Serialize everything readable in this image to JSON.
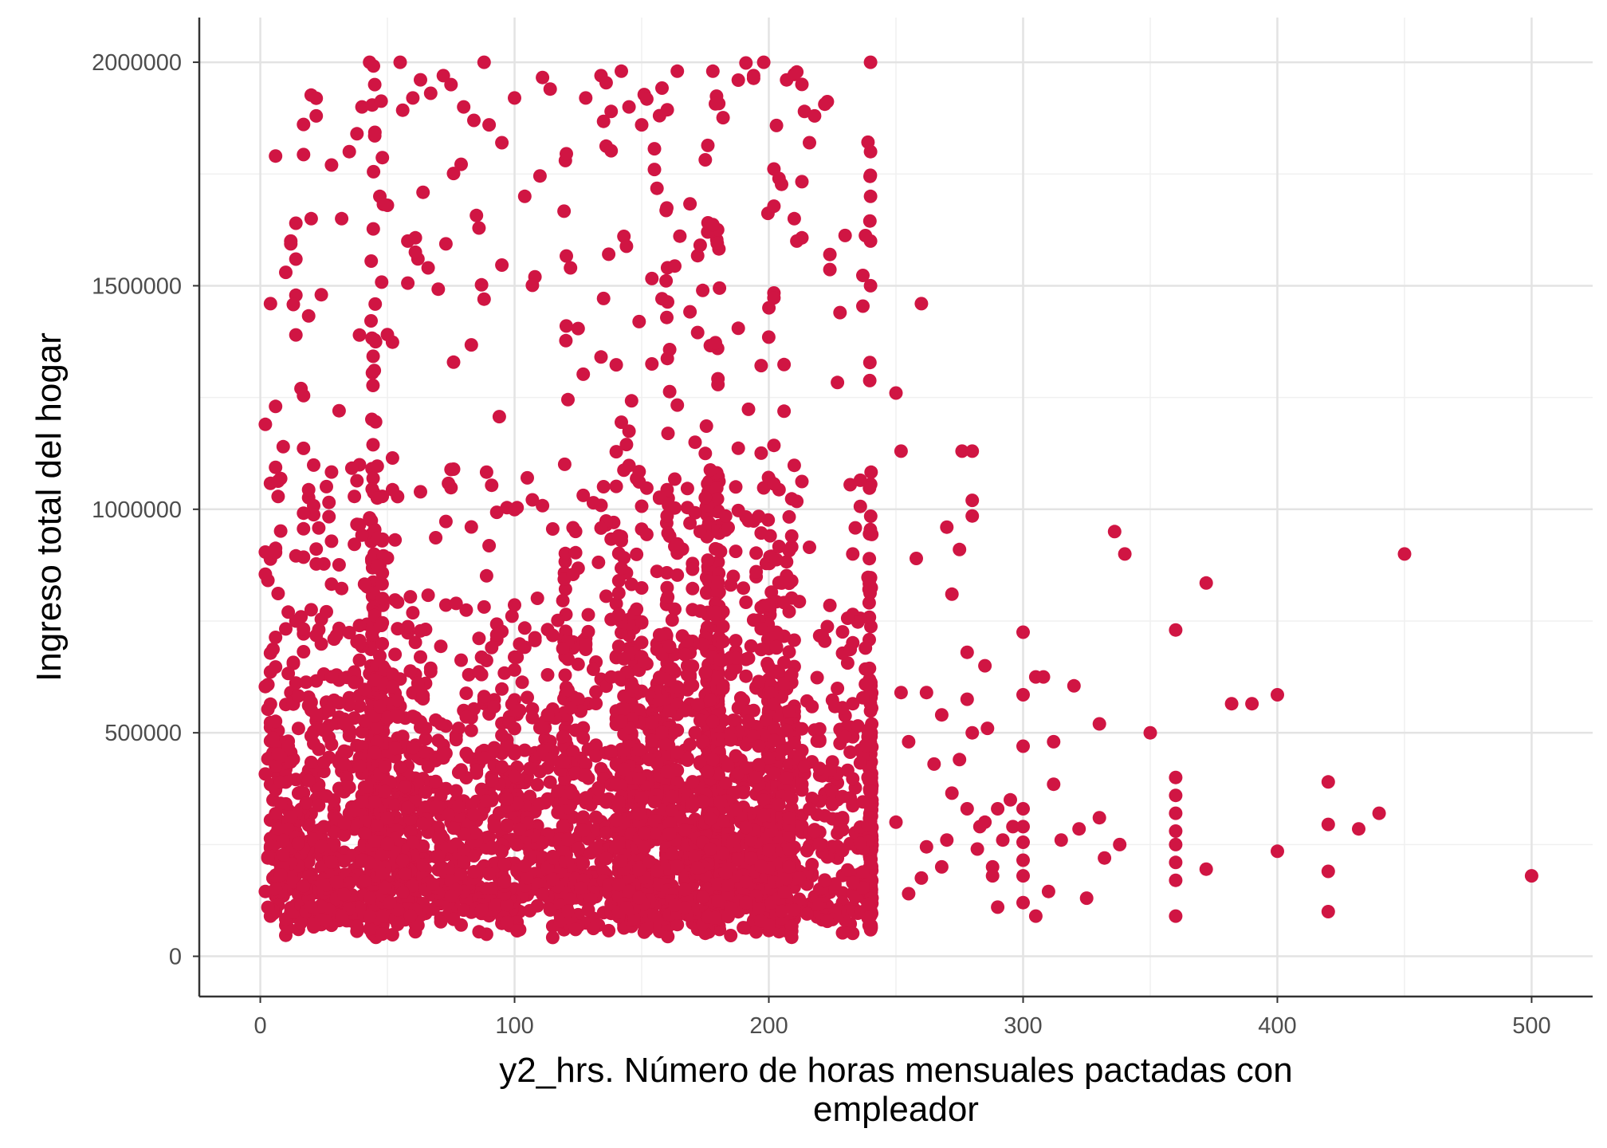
{
  "chart_data": {
    "type": "scatter",
    "title": "",
    "xlabel_lines": [
      "y2_hrs. Número de horas mensuales pactadas con",
      "empleador"
    ],
    "ylabel": "Ingreso total del hogar",
    "xlim": [
      -24,
      524
    ],
    "ylim": [
      -90000,
      2100000
    ],
    "x_ticks": [
      0,
      100,
      200,
      300,
      400,
      500
    ],
    "x_tick_labels": [
      "0",
      "100",
      "200",
      "300",
      "400",
      "500"
    ],
    "y_ticks": [
      0,
      500000,
      1000000,
      1500000,
      2000000
    ],
    "y_tick_labels": [
      "0",
      "500000",
      "1000000",
      "1500000",
      "2000000"
    ],
    "grid": true,
    "point_color": "#d01543",
    "points_summary": "Dense cloud of several thousand points for x between 0 and 240 hours (strong vertical bands at 44, 160, 176, 180 and 240 hours), concentrated below 500000 but reaching 2000000; sparse points beyond 250 hours.",
    "series": [
      {
        "name": "",
        "points": [
          [
            2,
            1190000
          ],
          [
            4,
            1460000
          ],
          [
            6,
            1230000
          ],
          [
            9,
            1140000
          ],
          [
            10,
            1530000
          ],
          [
            12,
            1600000
          ],
          [
            14,
            1390000
          ],
          [
            16,
            1270000
          ],
          [
            20,
            1650000
          ],
          [
            22,
            1880000
          ],
          [
            24,
            1480000
          ],
          [
            28,
            1770000
          ],
          [
            32,
            1650000
          ],
          [
            35,
            1800000
          ],
          [
            38,
            1840000
          ],
          [
            40,
            1900000
          ],
          [
            43,
            2000000
          ],
          [
            45,
            1950000
          ],
          [
            47,
            1700000
          ],
          [
            50,
            1680000
          ],
          [
            55,
            2000000
          ],
          [
            58,
            1600000
          ],
          [
            60,
            1920000
          ],
          [
            62,
            1560000
          ],
          [
            66,
            1540000
          ],
          [
            72,
            1970000
          ],
          [
            75,
            1950000
          ],
          [
            80,
            1900000
          ],
          [
            84,
            1870000
          ],
          [
            88,
            2000000
          ],
          [
            90,
            1860000
          ],
          [
            95,
            1820000
          ],
          [
            100,
            1920000
          ],
          [
            104,
            1700000
          ],
          [
            108,
            1520000
          ],
          [
            114,
            1940000
          ],
          [
            120,
            1780000
          ],
          [
            122,
            1540000
          ],
          [
            128,
            1920000
          ],
          [
            134,
            1970000
          ],
          [
            138,
            1890000
          ],
          [
            142,
            1980000
          ],
          [
            145,
            1900000
          ],
          [
            150,
            1860000
          ],
          [
            155,
            1760000
          ],
          [
            164,
            1980000
          ],
          [
            178,
            1980000
          ],
          [
            188,
            1960000
          ],
          [
            194,
            1970000
          ],
          [
            198,
            2000000
          ],
          [
            204,
            1740000
          ],
          [
            210,
            1650000
          ],
          [
            214,
            1890000
          ],
          [
            216,
            1820000
          ],
          [
            218,
            1880000
          ],
          [
            224,
            1570000
          ],
          [
            228,
            1440000
          ],
          [
            240,
            2000000
          ],
          [
            240,
            1800000
          ],
          [
            240,
            1700000
          ],
          [
            240,
            1600000
          ],
          [
            240,
            1500000
          ],
          [
            250,
            1260000
          ],
          [
            252,
            1130000
          ],
          [
            258,
            890000
          ],
          [
            260,
            1460000
          ],
          [
            270,
            960000
          ],
          [
            272,
            810000
          ],
          [
            275,
            910000
          ],
          [
            276,
            1130000
          ],
          [
            280,
            1130000
          ],
          [
            280,
            1020000
          ],
          [
            280,
            985000
          ],
          [
            278,
            680000
          ],
          [
            278,
            575000
          ],
          [
            280,
            500000
          ],
          [
            285,
            650000
          ],
          [
            286,
            510000
          ],
          [
            290,
            330000
          ],
          [
            300,
            725000
          ],
          [
            300,
            585000
          ],
          [
            300,
            470000
          ],
          [
            305,
            625000
          ],
          [
            308,
            625000
          ],
          [
            312,
            480000
          ],
          [
            312,
            385000
          ],
          [
            320,
            605000
          ],
          [
            330,
            520000
          ],
          [
            330,
            310000
          ],
          [
            336,
            950000
          ],
          [
            340,
            900000
          ],
          [
            350,
            500000
          ],
          [
            360,
            730000
          ],
          [
            360,
            400000
          ],
          [
            360,
            360000
          ],
          [
            360,
            320000
          ],
          [
            360,
            280000
          ],
          [
            360,
            250000
          ],
          [
            360,
            210000
          ],
          [
            360,
            170000
          ],
          [
            360,
            90000
          ],
          [
            372,
            835000
          ],
          [
            372,
            195000
          ],
          [
            382,
            565000
          ],
          [
            390,
            565000
          ],
          [
            400,
            585000
          ],
          [
            400,
            235000
          ],
          [
            420,
            390000
          ],
          [
            420,
            295000
          ],
          [
            420,
            190000
          ],
          [
            420,
            100000
          ],
          [
            432,
            285000
          ],
          [
            440,
            320000
          ],
          [
            450,
            900000
          ],
          [
            500,
            180000
          ],
          [
            252,
            590000
          ],
          [
            255,
            480000
          ],
          [
            262,
            590000
          ],
          [
            265,
            430000
          ],
          [
            268,
            540000
          ],
          [
            272,
            365000
          ],
          [
            275,
            440000
          ],
          [
            285,
            300000
          ],
          [
            288,
            200000
          ],
          [
            290,
            110000
          ],
          [
            296,
            290000
          ],
          [
            300,
            255000
          ],
          [
            300,
            215000
          ],
          [
            300,
            180000
          ],
          [
            300,
            120000
          ],
          [
            305,
            90000
          ],
          [
            310,
            145000
          ],
          [
            315,
            260000
          ],
          [
            322,
            285000
          ],
          [
            325,
            130000
          ],
          [
            332,
            220000
          ],
          [
            338,
            250000
          ],
          [
            262,
            245000
          ],
          [
            268,
            200000
          ],
          [
            255,
            140000
          ],
          [
            250,
            300000
          ],
          [
            260,
            175000
          ],
          [
            270,
            260000
          ],
          [
            283,
            290000
          ],
          [
            295,
            350000
          ],
          [
            300,
            330000
          ],
          [
            300,
            290000
          ],
          [
            288,
            180000
          ],
          [
            292,
            260000
          ],
          [
            278,
            330000
          ],
          [
            282,
            240000
          ]
        ]
      }
    ]
  }
}
